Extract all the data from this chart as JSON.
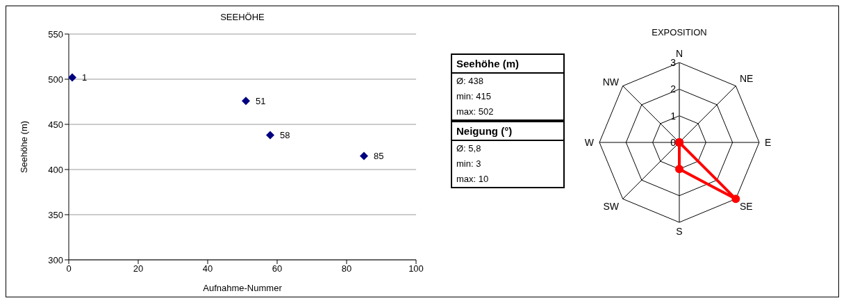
{
  "chart_data": [
    {
      "type": "scatter",
      "title": "SEEHÖHE",
      "xlabel": "Aufnahme-Nummer",
      "ylabel": "Seehöhe (m)",
      "x": [
        1,
        51,
        58,
        85
      ],
      "values": [
        502,
        476,
        438,
        415
      ],
      "annotations": [
        {
          "text": "1",
          "x": 1,
          "y": 502
        },
        {
          "text": "51",
          "x": 51,
          "y": 476
        },
        {
          "text": "58",
          "x": 58,
          "y": 438
        },
        {
          "text": "85",
          "x": 85,
          "y": 415
        }
      ],
      "color": "#000080",
      "marker": "diamond",
      "xlim": [
        0,
        100
      ],
      "xticks": [
        0,
        20,
        40,
        60,
        80,
        100
      ],
      "ylim": [
        300,
        550
      ],
      "yticks": [
        300,
        350,
        400,
        450,
        500,
        550
      ],
      "grid": "y",
      "legend": false
    },
    {
      "type": "other",
      "title": "Seehöhe (m)",
      "annotations": [
        "Ø: 438",
        "min: 415",
        "max: 502"
      ]
    },
    {
      "type": "other",
      "title": "Neigung (°)",
      "annotations": [
        "Ø: 5,8",
        "min: 3",
        "max: 10"
      ]
    },
    {
      "type": "radar",
      "title": "EXPOSITION",
      "categories": [
        "N",
        "NE",
        "E",
        "SE",
        "S",
        "SW",
        "W",
        "NW"
      ],
      "series": [
        {
          "color": "#ff0000",
          "values": [
            0,
            0,
            0,
            3,
            1,
            0,
            0,
            0
          ]
        }
      ],
      "ylim": [
        0,
        3
      ],
      "yticks": [
        0,
        1,
        2,
        3
      ],
      "marker": "circle",
      "grid": true,
      "legend": false
    }
  ]
}
